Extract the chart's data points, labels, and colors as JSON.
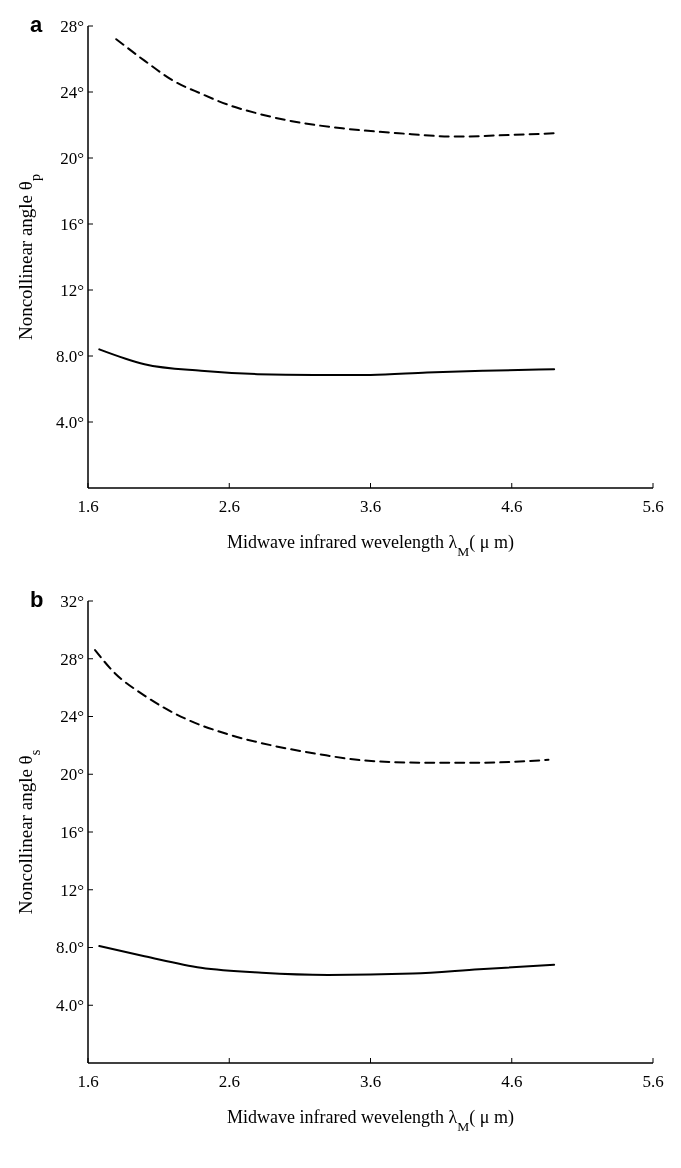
{
  "chart_data": [
    {
      "type": "line",
      "title": "a",
      "xlabel": "Midwave infrared wevelength λ$_{M}$( μ m)",
      "ylabel": "Noncollinear angle θ$_{p}$",
      "xlim": [
        1.6,
        5.6
      ],
      "xticks": [
        1.6,
        2.6,
        3.6,
        4.6,
        5.6
      ],
      "ylim": [
        0,
        28
      ],
      "yticks": [
        {
          "value": 4,
          "label": "4.0°"
        },
        {
          "value": 8,
          "label": "8.0°"
        },
        {
          "value": 12,
          "label": "12°"
        },
        {
          "value": 16,
          "label": "16°"
        },
        {
          "value": 20,
          "label": "20°"
        },
        {
          "value": 24,
          "label": "24°"
        },
        {
          "value": 28,
          "label": "28°"
        }
      ],
      "grid": false,
      "series": [
        {
          "color": "#000000",
          "line_style": "dashed",
          "x": [
            1.8,
            2.0,
            2.2,
            2.4,
            2.6,
            2.8,
            3.0,
            3.4,
            3.8,
            4.2,
            4.6,
            4.9
          ],
          "values": [
            27.2,
            25.9,
            24.7,
            23.9,
            23.2,
            22.7,
            22.3,
            21.8,
            21.5,
            21.3,
            21.4,
            21.5
          ]
        },
        {
          "color": "#000000",
          "line_style": "solid",
          "x": [
            1.68,
            2.0,
            2.4,
            2.8,
            3.2,
            3.6,
            4.0,
            4.4,
            4.9
          ],
          "values": [
            8.4,
            7.5,
            7.1,
            6.9,
            6.85,
            6.85,
            7.0,
            7.1,
            7.2
          ]
        }
      ]
    },
    {
      "type": "line",
      "title": "b",
      "xlabel": "Midwave infrared wevelength λ$_{M}$( μ m)",
      "ylabel": "Noncollinear angle θ$_{s}$",
      "xlim": [
        1.6,
        5.6
      ],
      "xticks": [
        1.6,
        2.6,
        3.6,
        4.6,
        5.6
      ],
      "ylim": [
        0,
        32
      ],
      "yticks": [
        {
          "value": 4,
          "label": "4.0°"
        },
        {
          "value": 8,
          "label": "8.0°"
        },
        {
          "value": 12,
          "label": "12°"
        },
        {
          "value": 16,
          "label": "16°"
        },
        {
          "value": 20,
          "label": "20°"
        },
        {
          "value": 24,
          "label": "24°"
        },
        {
          "value": 28,
          "label": "28°"
        },
        {
          "value": 32,
          "label": "32°"
        }
      ],
      "grid": false,
      "series": [
        {
          "color": "#000000",
          "line_style": "dashed",
          "x": [
            1.65,
            1.78,
            2.0,
            2.3,
            2.58,
            2.9,
            3.23,
            3.56,
            4.0,
            4.37,
            4.86
          ],
          "values": [
            28.6,
            27.1,
            25.45,
            23.8,
            22.8,
            22.0,
            21.4,
            20.95,
            20.8,
            20.8,
            21.0
          ]
        },
        {
          "color": "#000000",
          "line_style": "solid",
          "x": [
            1.68,
            2.0,
            2.4,
            2.83,
            3.3,
            3.9,
            4.37,
            4.9
          ],
          "values": [
            8.1,
            7.4,
            6.6,
            6.25,
            6.1,
            6.2,
            6.5,
            6.8
          ]
        }
      ]
    }
  ]
}
